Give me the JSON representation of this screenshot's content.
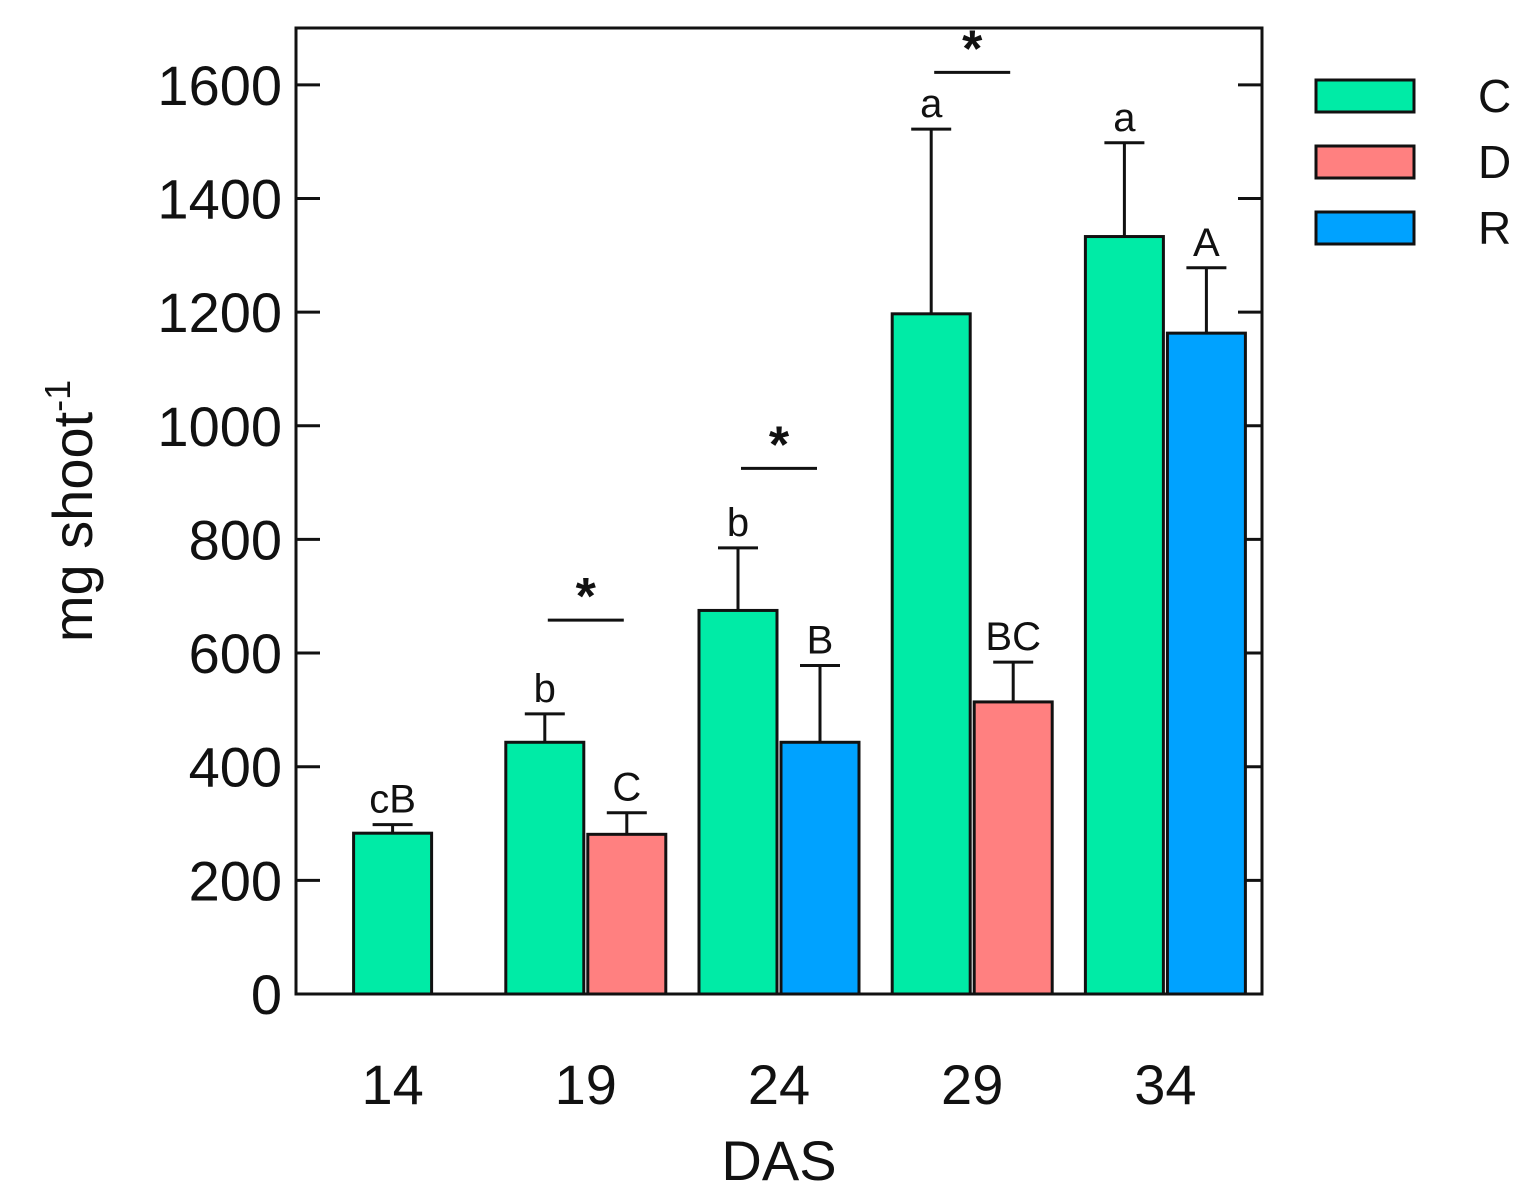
{
  "chart_data": {
    "type": "bar",
    "title": "",
    "xlabel": "DAS",
    "ylabel": "mg shoot",
    "ylabel_superscript": "-1",
    "ylim": [
      0,
      1700
    ],
    "yticks": [
      0,
      200,
      400,
      600,
      800,
      1000,
      1200,
      1400,
      1600
    ],
    "categories": [
      "14",
      "19",
      "24",
      "29",
      "34"
    ],
    "legend_position": "top-right (outside plot)",
    "series": [
      {
        "name": "C",
        "color": "#00EBA6"
      },
      {
        "name": "D",
        "color": "#FF8080"
      },
      {
        "name": "R",
        "color": "#00A2FF"
      }
    ],
    "bars": [
      {
        "category": "14",
        "series": "C",
        "value": 283,
        "error": 15,
        "label": "cB"
      },
      {
        "category": "19",
        "series": "C",
        "value": 443,
        "error": 50,
        "label": "b"
      },
      {
        "category": "19",
        "series": "D",
        "value": 281,
        "error": 38,
        "label": "C"
      },
      {
        "category": "24",
        "series": "C",
        "value": 675,
        "error": 110,
        "label": "b"
      },
      {
        "category": "24",
        "series": "R",
        "value": 443,
        "error": 135,
        "label": "B"
      },
      {
        "category": "29",
        "series": "C",
        "value": 1197,
        "error": 325,
        "label": "a"
      },
      {
        "category": "29",
        "series": "D",
        "value": 514,
        "error": 70,
        "label": "BC"
      },
      {
        "category": "34",
        "series": "C",
        "value": 1333,
        "error": 165,
        "label": "a"
      },
      {
        "category": "34",
        "series": "R",
        "value": 1163,
        "error": 115,
        "label": "A"
      }
    ],
    "significance": [
      {
        "category": "19",
        "label": "*",
        "value": 658
      },
      {
        "category": "24",
        "label": "*",
        "value": 925
      },
      {
        "category": "29",
        "label": "*",
        "value": 1622
      }
    ]
  }
}
